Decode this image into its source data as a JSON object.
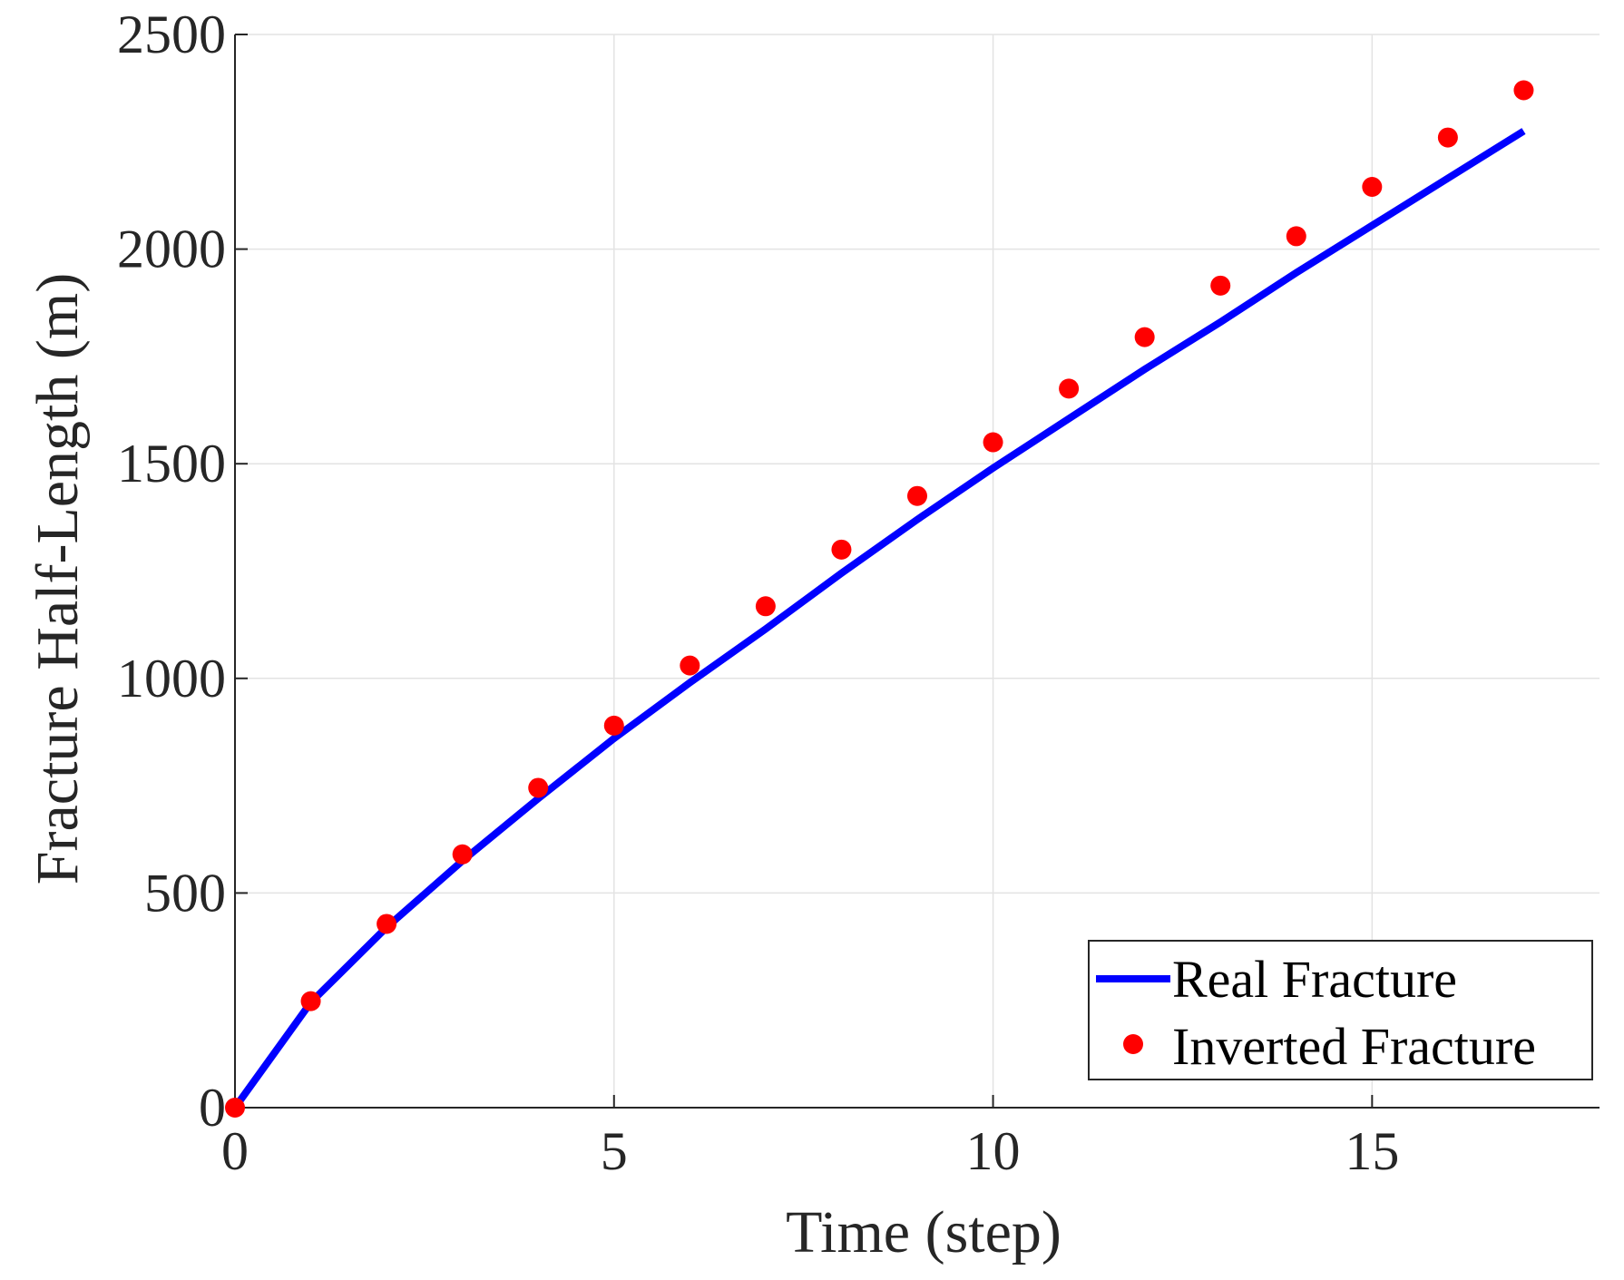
{
  "chart_data": {
    "type": "line",
    "title": "",
    "xlabel": "Time (step)",
    "ylabel": "Fracture Half-Length (m)",
    "xlim": [
      0,
      18
    ],
    "ylim": [
      0,
      2500
    ],
    "x_ticks": [
      0,
      5,
      10,
      15
    ],
    "y_ticks": [
      0,
      500,
      1000,
      1500,
      2000,
      2500
    ],
    "grid": true,
    "legend_position": "bottom-right",
    "series": [
      {
        "name": "Real Fracture",
        "style": "line",
        "color": "#0000ff",
        "x": [
          0,
          1,
          2,
          3,
          4,
          5,
          6,
          7,
          8,
          9,
          10,
          11,
          12,
          13,
          14,
          15,
          16,
          17
        ],
        "y": [
          0,
          245,
          420,
          575,
          720,
          860,
          990,
          1115,
          1245,
          1370,
          1490,
          1605,
          1720,
          1830,
          1945,
          2055,
          2165,
          2275
        ]
      },
      {
        "name": "Inverted Fracture",
        "style": "markers",
        "color": "#ff0000",
        "x": [
          0,
          1,
          2,
          3,
          4,
          5,
          6,
          7,
          8,
          9,
          10,
          11,
          12,
          13,
          14,
          15,
          16,
          17
        ],
        "y": [
          0,
          248,
          428,
          590,
          745,
          890,
          1030,
          1168,
          1300,
          1425,
          1550,
          1675,
          1795,
          1915,
          2030,
          2145,
          2260,
          2370
        ]
      }
    ]
  }
}
